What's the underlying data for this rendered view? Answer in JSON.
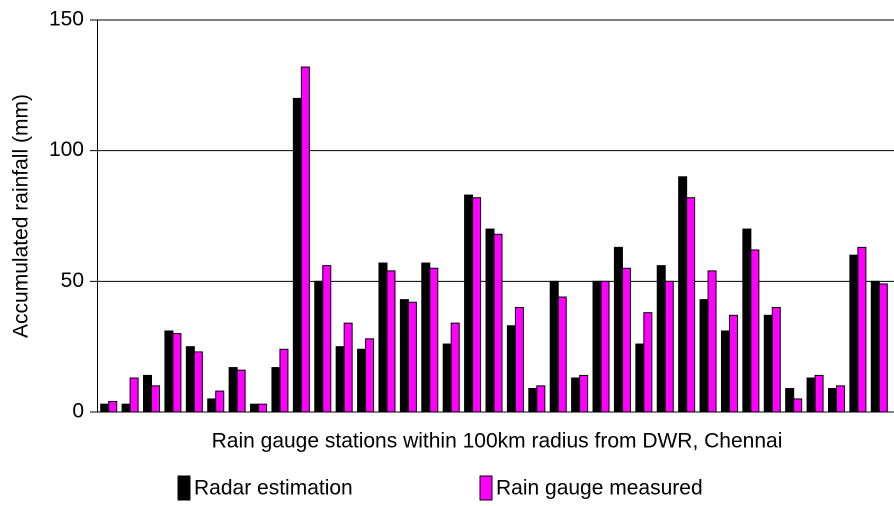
{
  "chart_data": {
    "type": "bar",
    "x_label": "Rain gauge stations within 100km radius from DWR, Chennai",
    "y_label": "Accumulated rainfall (mm)",
    "categories": [
      null,
      null,
      null,
      null,
      null,
      null,
      null,
      null,
      null,
      null,
      null,
      null,
      null,
      null,
      null,
      null,
      null,
      null,
      null,
      null,
      null,
      null,
      null,
      null,
      null,
      null,
      null,
      null,
      null,
      null,
      null,
      null,
      null,
      null,
      null,
      null,
      null
    ],
    "series": [
      {
        "name": "Radar estimation",
        "color": "#000000",
        "values": [
          3,
          3,
          14,
          31,
          25,
          5,
          17,
          3,
          17,
          120,
          50,
          25,
          24,
          57,
          43,
          57,
          26,
          83,
          70,
          33,
          9,
          50,
          13,
          50,
          63,
          26,
          56,
          90,
          43,
          31,
          70,
          37,
          9,
          13,
          9,
          60,
          50
        ]
      },
      {
        "name": "Rain gauge measured",
        "color": "#ff00ff",
        "values": [
          4,
          13,
          10,
          30,
          23,
          8,
          16,
          3,
          24,
          132,
          56,
          34,
          28,
          54,
          42,
          55,
          34,
          82,
          68,
          40,
          10,
          44,
          14,
          50,
          55,
          38,
          50,
          82,
          54,
          37,
          62,
          40,
          5,
          14,
          10,
          63,
          49
        ]
      }
    ],
    "ylim": [
      0,
      150
    ],
    "yticks": [
      0,
      50,
      100,
      150
    ],
    "grid": true,
    "legend": "bottom"
  }
}
